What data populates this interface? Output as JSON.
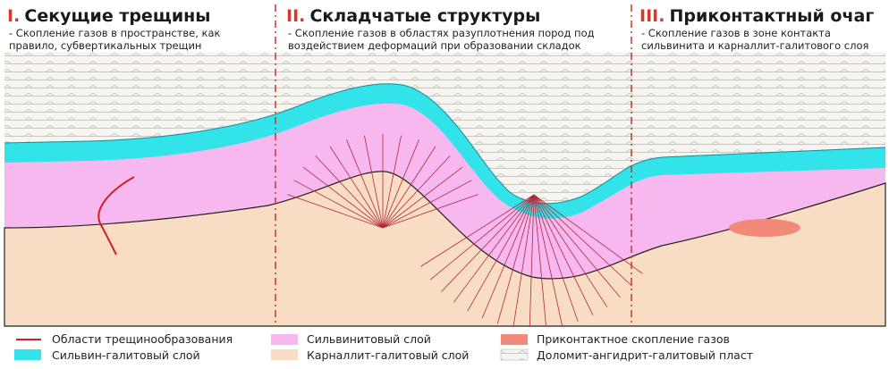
{
  "sections": [
    {
      "numeral": "I.",
      "title": "Секущие трещины",
      "lines": [
        "- Скопление газов в пространстве, как",
        "правило, субвертикальных трещин"
      ]
    },
    {
      "numeral": "II.",
      "title": "Складчатые структуры",
      "lines": [
        "- Скопление газов в областях разуплотнения пород под",
        "воздействием деформаций при образовании складок"
      ]
    },
    {
      "numeral": "III.",
      "title": "Приконтактный очаг",
      "lines": [
        "- Скопление газов в зоне контакта",
        "сильвинита и карналлит-галитового слоя"
      ]
    }
  ],
  "legend": [
    "Области трещинообразования",
    "Сильвин-галитовый слой",
    "Сильвинитовый слой",
    "Карналлит-галитовый слой",
    "Приконтактное скопление газов",
    "Доломит-ангидрит-галитовый пласт"
  ]
}
